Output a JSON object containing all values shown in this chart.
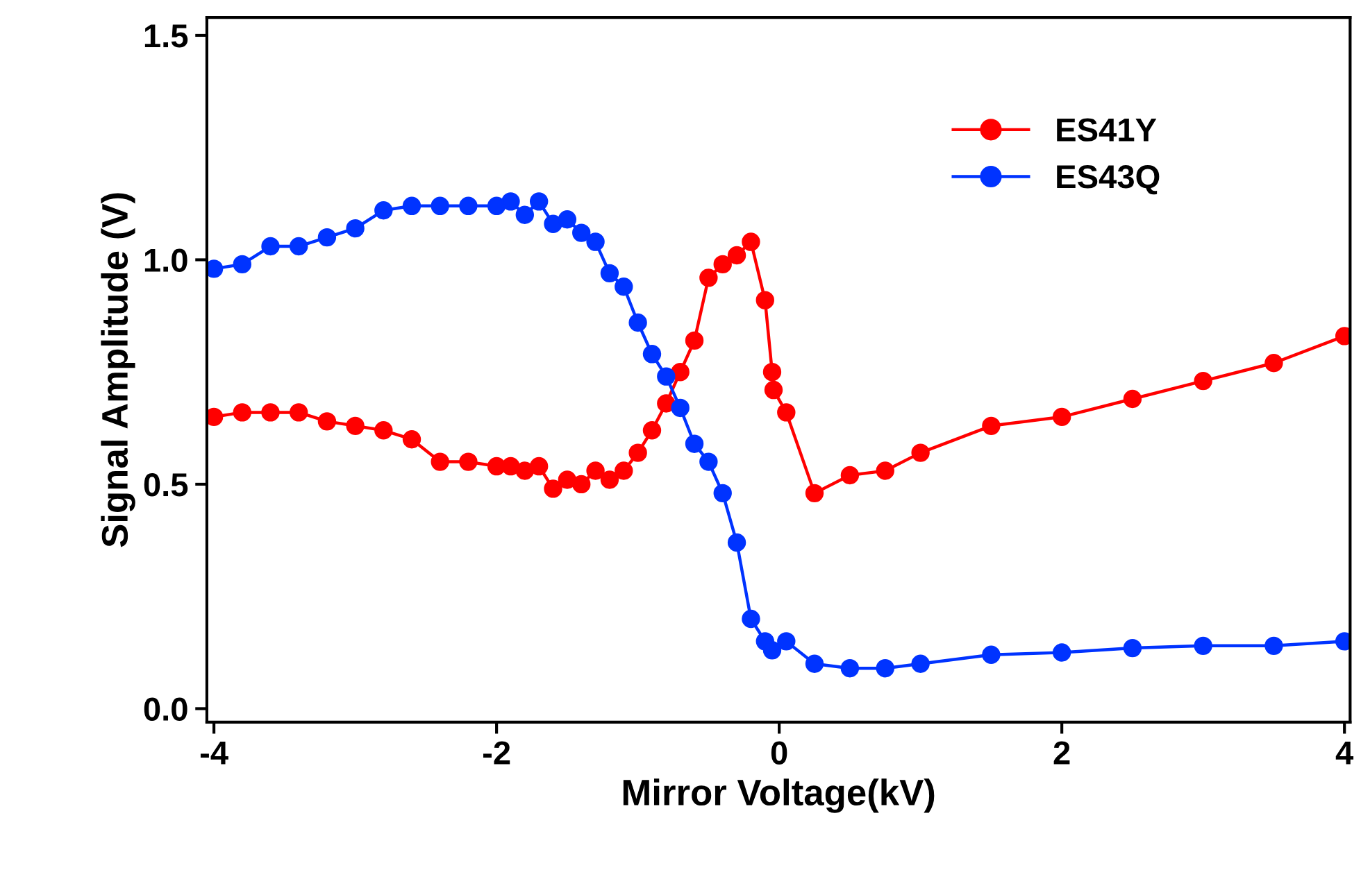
{
  "chart_data": {
    "type": "line",
    "xlabel": "Mirror Voltage(kV)",
    "ylabel": "Signal Amplitude (V)",
    "xlim": [
      -4.05,
      4.04
    ],
    "ylim": [
      -0.03,
      1.54
    ],
    "xticks": [
      -4,
      -2,
      0,
      2,
      4
    ],
    "yticks": [
      {
        "value": 0,
        "label": "0.0"
      },
      {
        "value": 0.5,
        "label": "0.5"
      },
      {
        "value": 1.0,
        "label": "1.0"
      },
      {
        "value": 1.5,
        "label": "1.5"
      }
    ],
    "grid": false,
    "legend": "top right",
    "marker": "circle",
    "line_style": "solid",
    "series": [
      {
        "name": "ES41Y",
        "color": "#ff0000",
        "x": [
          -4,
          -3.8,
          -3.6,
          -3.4,
          -3.2,
          -3.0,
          -2.8,
          -2.6,
          -2.4,
          -2.2,
          -2.0,
          -1.9,
          -1.8,
          -1.7,
          -1.6,
          -1.5,
          -1.4,
          -1.3,
          -1.2,
          -1.1,
          -1.0,
          -0.9,
          -0.8,
          -0.7,
          -0.6,
          -0.5,
          -0.4,
          -0.3,
          -0.2,
          -0.1,
          -0.05,
          -0.04,
          0.05,
          0.25,
          0.5,
          0.75,
          1.0,
          1.5,
          2.0,
          2.5,
          3.0,
          3.5,
          4.0
        ],
        "values": [
          0.65,
          0.66,
          0.66,
          0.66,
          0.64,
          0.63,
          0.62,
          0.6,
          0.55,
          0.55,
          0.54,
          0.54,
          0.53,
          0.54,
          0.49,
          0.51,
          0.5,
          0.53,
          0.51,
          0.53,
          0.57,
          0.62,
          0.68,
          0.75,
          0.82,
          0.96,
          0.99,
          1.01,
          1.04,
          0.91,
          0.75,
          0.71,
          0.66,
          0.48,
          0.52,
          0.53,
          0.57,
          0.63,
          0.65,
          0.69,
          0.73,
          0.77,
          0.83
        ]
      },
      {
        "name": "ES43Q",
        "color": "#0033ff",
        "x": [
          -4,
          -3.8,
          -3.6,
          -3.4,
          -3.2,
          -3.0,
          -2.8,
          -2.6,
          -2.4,
          -2.2,
          -2.0,
          -1.9,
          -1.8,
          -1.7,
          -1.6,
          -1.5,
          -1.4,
          -1.3,
          -1.2,
          -1.1,
          -1.0,
          -0.9,
          -0.8,
          -0.7,
          -0.6,
          -0.5,
          -0.4,
          -0.3,
          -0.2,
          -0.1,
          -0.05,
          0.05,
          0.25,
          0.5,
          0.75,
          1.0,
          1.5,
          2.0,
          2.5,
          3.0,
          3.5,
          4.0
        ],
        "values": [
          0.98,
          0.99,
          1.03,
          1.03,
          1.05,
          1.07,
          1.11,
          1.12,
          1.12,
          1.12,
          1.12,
          1.13,
          1.1,
          1.13,
          1.08,
          1.09,
          1.06,
          1.04,
          0.97,
          0.94,
          0.86,
          0.79,
          0.74,
          0.67,
          0.59,
          0.55,
          0.48,
          0.37,
          0.2,
          0.15,
          0.13,
          0.15,
          0.1,
          0.09,
          0.09,
          0.1,
          0.12,
          0.125,
          0.135,
          0.14,
          0.14,
          0.15
        ]
      }
    ]
  }
}
